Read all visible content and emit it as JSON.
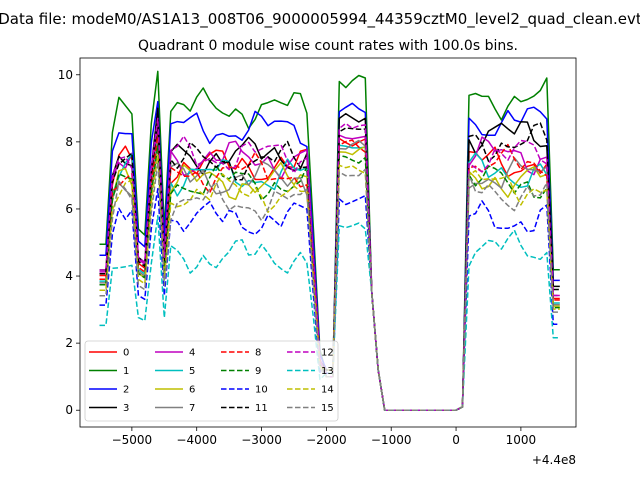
{
  "figure": {
    "suptitle": "Data file: modeM0/AS1A13_008T06_9000005994_44359cztM0_level2_quad_clean.evt",
    "title": "Quadrant 0 module wise count rates with 100.0s bins.",
    "x_offset_label": "+4.4e8"
  },
  "chart_data": {
    "type": "line",
    "title": "Quadrant 0 module wise count rates with 100.0s bins.",
    "xlabel": "",
    "ylabel": "",
    "x_offset": 440000000,
    "xlim": [
      -5800,
      1850
    ],
    "ylim": [
      -0.5,
      10.5
    ],
    "x_ticks": [
      -5000,
      -4000,
      -3000,
      -2000,
      -1000,
      0,
      1000
    ],
    "x_tick_labels": [
      "−5000",
      "−4000",
      "−3000",
      "−2000",
      "−1000",
      "0",
      "1000"
    ],
    "y_ticks": [
      0,
      2,
      4,
      6,
      8,
      10
    ],
    "y_tick_labels": [
      "0",
      "2",
      "4",
      "6",
      "8",
      "10"
    ],
    "grid": false,
    "legend_placement": "lower-left",
    "segments": [
      {
        "x_start": -5500,
        "x_end": -2100,
        "step": 100
      },
      {
        "x_start": -2000,
        "x_end": -1900,
        "step": 100
      },
      {
        "x_start": -1800,
        "x_end": 0,
        "step": 100
      },
      {
        "x_start": 100,
        "x_end": 1600,
        "step": 100
      }
    ],
    "gap_value": 0,
    "series": [
      {
        "name": "0",
        "color": "#ff0000",
        "dash": "solid",
        "level": 7.3,
        "peak": 8.1,
        "post": 7.4
      },
      {
        "name": "1",
        "color": "#008000",
        "dash": "solid",
        "level": 9.0,
        "peak": 9.8,
        "post": 9.3
      },
      {
        "name": "2",
        "color": "#0000ff",
        "dash": "solid",
        "level": 8.4,
        "peak": 8.9,
        "post": 8.6
      },
      {
        "name": "3",
        "color": "#000000",
        "dash": "solid",
        "level": 7.6,
        "peak": 8.7,
        "post": 8.2
      },
      {
        "name": "4",
        "color": "#bf00bf",
        "dash": "solid",
        "level": 7.5,
        "peak": 8.2,
        "post": 7.6
      },
      {
        "name": "5",
        "color": "#00bfbf",
        "dash": "solid",
        "level": 7.0,
        "peak": 7.9,
        "post": 7.1
      },
      {
        "name": "6",
        "color": "#bfbf00",
        "dash": "solid",
        "level": 6.8,
        "peak": 7.7,
        "post": 6.9
      },
      {
        "name": "7",
        "color": "#808080",
        "dash": "solid",
        "level": 6.9,
        "peak": 7.8,
        "post": 7.0
      },
      {
        "name": "8",
        "color": "#ff0000",
        "dash": "dashed",
        "level": 7.1,
        "peak": 7.9,
        "post": 7.3
      },
      {
        "name": "9",
        "color": "#008000",
        "dash": "dashed",
        "level": 6.8,
        "peak": 7.6,
        "post": 6.8
      },
      {
        "name": "10",
        "color": "#0000ff",
        "dash": "dashed",
        "level": 5.7,
        "peak": 6.3,
        "post": 5.7
      },
      {
        "name": "11",
        "color": "#000000",
        "dash": "dashed",
        "level": 7.4,
        "peak": 8.3,
        "post": 8.0
      },
      {
        "name": "12",
        "color": "#bf00bf",
        "dash": "dashed",
        "level": 7.6,
        "peak": 8.4,
        "post": 7.6
      },
      {
        "name": "13",
        "color": "#00bfbf",
        "dash": "dashed",
        "level": 4.6,
        "peak": 5.5,
        "post": 4.8
      },
      {
        "name": "14",
        "color": "#bfbf00",
        "dash": "dashed",
        "level": 6.5,
        "peak": 7.3,
        "post": 6.7
      },
      {
        "name": "15",
        "color": "#808080",
        "dash": "dashed",
        "level": 6.2,
        "peak": 7.1,
        "post": 6.5
      }
    ]
  }
}
